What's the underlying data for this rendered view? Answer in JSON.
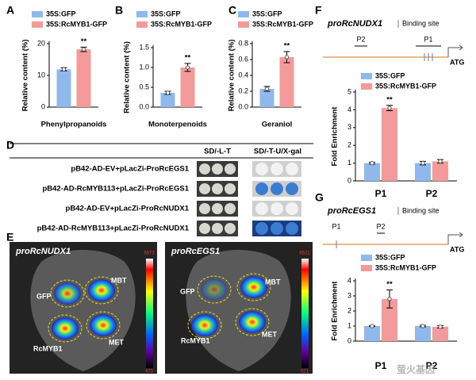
{
  "chart_data": [
    {
      "type": "bar",
      "panel": "A",
      "categories": [
        "Phenylpropanoids"
      ],
      "ylabel": "Relative content (%)",
      "series": [
        {
          "name": "35S:GFP",
          "color": "#8fb8ec",
          "values": [
            11.9
          ],
          "errors": [
            0.5
          ]
        },
        {
          "name": "35S:RcMYB1-GFP",
          "color": "#f59a9a",
          "values": [
            18.2
          ],
          "errors": [
            0.7
          ]
        }
      ],
      "annotation": "**",
      "ylim": [
        0,
        20
      ],
      "yticks": [
        0,
        10,
        20
      ]
    },
    {
      "type": "bar",
      "panel": "B",
      "categories": [
        "Monoterpenoids"
      ],
      "ylabel": "Relative content (%)",
      "series": [
        {
          "name": "35S:GFP",
          "color": "#8fb8ec",
          "values": [
            0.36
          ],
          "errors": [
            0.04
          ]
        },
        {
          "name": "35S:RcMYB1-GFP",
          "color": "#f59a9a",
          "values": [
            1.0
          ],
          "errors": [
            0.1
          ]
        }
      ],
      "annotation": "**",
      "ylim": [
        0,
        1.5
      ],
      "yticks": [
        {
          "value": 0,
          "label": "0.0"
        },
        {
          "value": 0.5,
          "label": "0.5"
        },
        {
          "value": 1,
          "label": "1.0"
        },
        {
          "value": 1.5,
          "label": "1.5"
        }
      ]
    },
    {
      "type": "bar",
      "panel": "C",
      "categories": [
        "Geraniol"
      ],
      "ylabel": "Relative content (%)",
      "series": [
        {
          "name": "35S:GFP",
          "color": "#8fb8ec",
          "values": [
            0.23
          ],
          "errors": [
            0.03
          ]
        },
        {
          "name": "35S:RcMYB1-GFP",
          "color": "#f59a9a",
          "values": [
            0.63
          ],
          "errors": [
            0.07
          ]
        }
      ],
      "annotation": "**",
      "ylim": [
        0,
        0.8
      ],
      "yticks": [
        {
          "value": 0,
          "label": "0.0"
        },
        0.2,
        0.4,
        0.6,
        0.8
      ]
    },
    {
      "type": "bar",
      "panel": "F",
      "categories": [
        "P1",
        "P2"
      ],
      "ylabel": "Fold Enrichment",
      "promoter": {
        "title": "proRcNUDX1",
        "binding_label": "Binding site",
        "sites": [
          "P2",
          "P1"
        ],
        "end": "ATG"
      },
      "series": [
        {
          "name": "35S:GFP",
          "color": "#8fb8ec",
          "values": [
            1.0,
            1.0
          ],
          "errors": [
            0.05,
            0.1
          ]
        },
        {
          "name": "35S:RcMYB1-GFP",
          "color": "#f59a9a",
          "values": [
            4.1,
            1.1
          ],
          "errors": [
            0.15,
            0.1
          ]
        }
      ],
      "annotation": "**",
      "ylim": [
        0,
        5
      ],
      "yticks": [
        0,
        1,
        2,
        3,
        4,
        5
      ]
    },
    {
      "type": "bar",
      "panel": "G",
      "categories": [
        "P1",
        "P2"
      ],
      "ylabel": "Fold Enrichment",
      "promoter": {
        "title": "proRcEGS1",
        "binding_label": "Binding site",
        "sites": [
          "P1",
          "P2"
        ],
        "end": "ATG"
      },
      "series": [
        {
          "name": "35S:GFP",
          "color": "#8fb8ec",
          "values": [
            1.0,
            1.0
          ],
          "errors": [
            0.02,
            0.05
          ]
        },
        {
          "name": "35S:RcMYB1-GFP",
          "color": "#f59a9a",
          "values": [
            2.8,
            0.95
          ],
          "errors": [
            0.6,
            0.08
          ]
        }
      ],
      "annotation": "**",
      "ylim": [
        0,
        4
      ],
      "yticks": [
        0,
        1,
        2,
        3,
        4
      ]
    }
  ],
  "panel_d": {
    "panel": "D",
    "columns": [
      "SD/-L-T",
      "SD/-T-U/X-gal"
    ],
    "rows": [
      "pB42-AD-EV+pLacZi-ProRcEGS1",
      "pB42-AD-RcMYB113+pLacZi-ProRcEGS1",
      "pB42-AD-EV+pLacZi-ProRcNUDX1",
      "pB42-AD-RcMYB113+pLacZi-ProRcNUDX1"
    ]
  },
  "panel_e": {
    "panel": "E",
    "images": [
      {
        "title": "proRcNUDX1",
        "spots": [
          "GFP",
          "MBT",
          "RcMYB1",
          "MET"
        ],
        "scale_max": "6573",
        "scale_min": "473"
      },
      {
        "title": "proRcEGS1",
        "spots": [
          "GFP",
          "MBT",
          "RcMYB1",
          "MET"
        ],
        "scale_max": "6521",
        "scale_min": "521"
      }
    ]
  },
  "watermark": "萤火基因"
}
